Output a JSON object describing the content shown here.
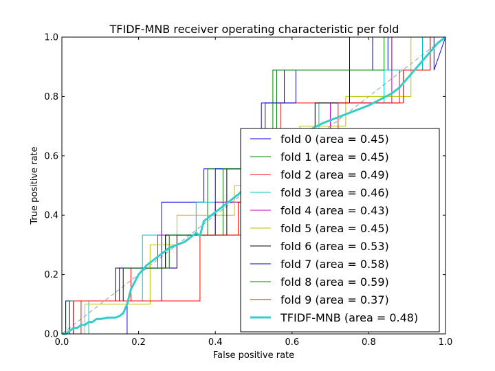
{
  "chart_data": {
    "type": "line",
    "title": "TFIDF-MNB receiver operating characteristic per fold",
    "xlabel": "False positive rate",
    "ylabel": "True positive rate",
    "xlim": [
      0.0,
      1.0
    ],
    "ylim": [
      0.0,
      1.0
    ],
    "xticks": [
      "0.0",
      "0.2",
      "0.4",
      "0.6",
      "0.8",
      "1.0"
    ],
    "yticks": [
      "0.0",
      "0.2",
      "0.4",
      "0.6",
      "0.8",
      "1.0"
    ],
    "grid": false,
    "legend_position": "lower-right",
    "diagonal": {
      "x": [
        0,
        1
      ],
      "y": [
        0,
        1
      ],
      "color": "#999999",
      "style": "dashed"
    },
    "series": [
      {
        "name": "fold 0 (area = 0.45)",
        "color": "#0000ff",
        "kind": "step",
        "x": [
          0,
          0.02,
          0.17,
          0.17,
          0.26,
          0.26,
          0.37,
          0.37,
          0.52,
          0.52,
          0.58,
          0.58,
          0.85,
          0.85,
          0.97,
          0.97,
          1.0
        ],
        "y": [
          0,
          0,
          0,
          0.111,
          0.111,
          0.444,
          0.444,
          0.556,
          0.556,
          0.778,
          0.778,
          0.889,
          0.889,
          1.0,
          1.0,
          0.889,
          1.0
        ]
      },
      {
        "name": "fold 1 (area = 0.45)",
        "color": "#008000",
        "kind": "step",
        "x": [
          0,
          0.01,
          0.01,
          0.16,
          0.16,
          0.27,
          0.27,
          0.38,
          0.38,
          0.47,
          0.47,
          0.56,
          0.56,
          0.86,
          0.86,
          1.0
        ],
        "y": [
          0,
          0,
          0.111,
          0.111,
          0.222,
          0.222,
          0.333,
          0.333,
          0.556,
          0.556,
          0.667,
          0.667,
          0.889,
          0.889,
          1.0,
          1.0
        ]
      },
      {
        "name": "fold 2 (area = 0.49)",
        "color": "#ff0000",
        "kind": "step",
        "x": [
          0,
          0.05,
          0.05,
          0.18,
          0.18,
          0.3,
          0.3,
          0.47,
          0.47,
          0.57,
          0.57,
          0.88,
          0.88,
          0.96,
          0.96,
          1.0
        ],
        "y": [
          0,
          0,
          0.111,
          0.111,
          0.222,
          0.222,
          0.333,
          0.333,
          0.444,
          0.444,
          0.778,
          0.778,
          0.889,
          0.889,
          1.0,
          1.0
        ]
      },
      {
        "name": "fold 3 (area = 0.46)",
        "color": "#00bfbf",
        "kind": "step",
        "x": [
          0,
          0.07,
          0.07,
          0.21,
          0.21,
          0.35,
          0.35,
          0.5,
          0.5,
          0.67,
          0.67,
          0.84,
          0.84,
          0.94,
          0.94,
          1.0
        ],
        "y": [
          0,
          0,
          0.111,
          0.111,
          0.333,
          0.333,
          0.444,
          0.444,
          0.556,
          0.556,
          0.778,
          0.778,
          0.889,
          0.889,
          1.0,
          1.0
        ]
      },
      {
        "name": "fold 4 (area = 0.43)",
        "color": "#bf00bf",
        "kind": "step",
        "x": [
          0,
          0.03,
          0.03,
          0.16,
          0.16,
          0.25,
          0.25,
          0.4,
          0.4,
          0.54,
          0.54,
          0.7,
          0.7,
          0.86,
          0.86,
          1.0
        ],
        "y": [
          0,
          0,
          0.111,
          0.111,
          0.222,
          0.222,
          0.333,
          0.333,
          0.444,
          0.444,
          0.667,
          0.667,
          0.778,
          0.778,
          1.0,
          1.0
        ]
      },
      {
        "name": "fold 5 (area = 0.45)",
        "color": "#bfbf00",
        "kind": "step",
        "x": [
          0,
          0.06,
          0.06,
          0.23,
          0.23,
          0.3,
          0.3,
          0.45,
          0.45,
          0.62,
          0.62,
          0.74,
          0.74,
          0.91,
          0.91,
          1.0
        ],
        "y": [
          0,
          0,
          0.1,
          0.1,
          0.3,
          0.3,
          0.4,
          0.4,
          0.5,
          0.5,
          0.7,
          0.7,
          0.8,
          0.8,
          1.0,
          1.0
        ]
      },
      {
        "name": "fold 6 (area = 0.53)",
        "color": "#000000",
        "kind": "step",
        "x": [
          0,
          0.02,
          0.02,
          0.14,
          0.14,
          0.27,
          0.27,
          0.43,
          0.43,
          0.58,
          0.58,
          0.66,
          0.66,
          0.75,
          0.75,
          1.0
        ],
        "y": [
          0,
          0,
          0.111,
          0.111,
          0.222,
          0.222,
          0.333,
          0.333,
          0.556,
          0.556,
          0.667,
          0.667,
          0.778,
          0.778,
          1.0,
          1.0
        ]
      },
      {
        "name": "fold 7 (area = 0.58)",
        "color": "#0000bf",
        "kind": "step",
        "x": [
          0,
          0.01,
          0.01,
          0.15,
          0.15,
          0.3,
          0.3,
          0.4,
          0.4,
          0.53,
          0.53,
          0.61,
          0.61,
          0.81,
          0.81,
          1.0
        ],
        "y": [
          0,
          0,
          0.111,
          0.111,
          0.222,
          0.222,
          0.333,
          0.333,
          0.556,
          0.556,
          0.778,
          0.778,
          0.889,
          0.889,
          1.0,
          1.0
        ]
      },
      {
        "name": "fold 8 (area = 0.59)",
        "color": "#008000",
        "kind": "step",
        "x": [
          0,
          0.02,
          0.02,
          0.16,
          0.16,
          0.28,
          0.28,
          0.42,
          0.42,
          0.55,
          0.55,
          0.68,
          0.68,
          0.84,
          0.84,
          1.0
        ],
        "y": [
          0,
          0,
          0.111,
          0.111,
          0.222,
          0.222,
          0.333,
          0.333,
          0.556,
          0.556,
          0.889,
          0.889,
          0.889,
          0.889,
          1.0,
          1.0
        ]
      },
      {
        "name": "fold 9 (area = 0.37)",
        "color": "#ff0000",
        "kind": "step",
        "x": [
          0,
          0.03,
          0.03,
          0.18,
          0.18,
          0.36,
          0.36,
          0.46,
          0.46,
          0.6,
          0.6,
          0.72,
          0.72,
          0.89,
          0.89,
          0.96,
          0.96,
          1.0
        ],
        "y": [
          0,
          0,
          0.111,
          0.111,
          0.111,
          0.111,
          0.333,
          0.333,
          0.444,
          0.444,
          0.556,
          0.556,
          0.778,
          0.778,
          0.889,
          0.889,
          1.0,
          1.0
        ]
      },
      {
        "name": "TFIDF-MNB (area = 0.48)",
        "color": "#33cccc",
        "kind": "line",
        "width": 3,
        "x": [
          0.0,
          0.01,
          0.02,
          0.03,
          0.04,
          0.05,
          0.06,
          0.07,
          0.08,
          0.09,
          0.1,
          0.12,
          0.14,
          0.15,
          0.16,
          0.17,
          0.18,
          0.2,
          0.22,
          0.24,
          0.26,
          0.28,
          0.3,
          0.32,
          0.34,
          0.35,
          0.36,
          0.37,
          0.4,
          0.43,
          0.46,
          0.5,
          0.55,
          0.6,
          0.65,
          0.68,
          0.72,
          0.76,
          0.8,
          0.83,
          0.86,
          0.88,
          0.9,
          0.92,
          0.94,
          0.96,
          0.98,
          1.0
        ],
        "y": [
          0.0,
          0.0,
          0.01,
          0.02,
          0.02,
          0.03,
          0.03,
          0.04,
          0.04,
          0.05,
          0.05,
          0.055,
          0.055,
          0.06,
          0.07,
          0.1,
          0.15,
          0.2,
          0.23,
          0.25,
          0.27,
          0.29,
          0.3,
          0.31,
          0.33,
          0.34,
          0.33,
          0.38,
          0.41,
          0.44,
          0.47,
          0.52,
          0.58,
          0.64,
          0.69,
          0.71,
          0.73,
          0.75,
          0.77,
          0.79,
          0.81,
          0.83,
          0.86,
          0.89,
          0.92,
          0.95,
          0.98,
          1.0
        ]
      }
    ]
  }
}
